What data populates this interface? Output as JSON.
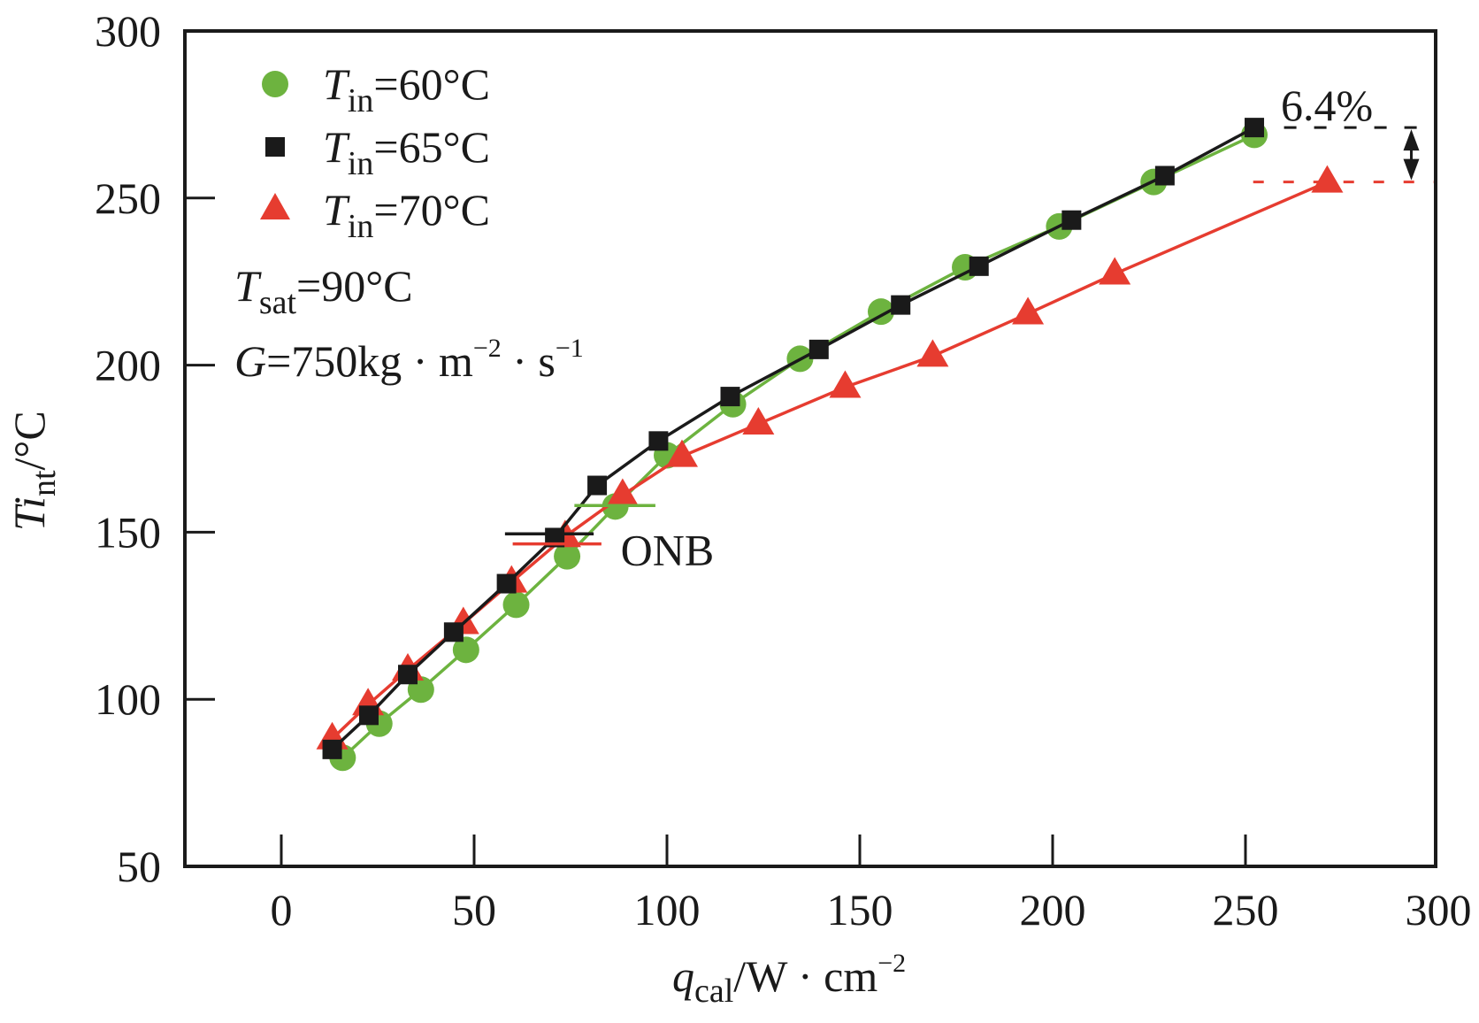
{
  "chart_data": {
    "type": "line",
    "title": "",
    "xlabel": {
      "var": "q",
      "sub": "cal",
      "unit": "/W · cm",
      "sup": "−2"
    },
    "ylabel": {
      "var": "Ti",
      "sub": "nt",
      "unit": "/°C"
    },
    "xlim": [
      -25,
      300
    ],
    "ylim": [
      50,
      300
    ],
    "x_ticks": [
      0,
      50,
      100,
      150,
      200,
      250,
      300
    ],
    "y_ticks": [
      50,
      100,
      150,
      200,
      250,
      300
    ],
    "grid": false,
    "legend_position": "top-left",
    "series": [
      {
        "name": "Tin=60°C",
        "label_var": "T",
        "label_sub": "in",
        "label_rest": "=60°C",
        "marker": "circle",
        "color": "#6db33f",
        "x": [
          15.9,
          25.4,
          36.2,
          47.9,
          60.9,
          74.1,
          86.6,
          100,
          117.1,
          134.5,
          155.5,
          177.3,
          201.7,
          226.2,
          252.3
        ],
        "y": [
          82.5,
          92.7,
          102.9,
          114.8,
          128.3,
          142.8,
          157.7,
          173,
          188.3,
          201.9,
          216,
          229.3,
          241.5,
          254.8,
          268.9
        ]
      },
      {
        "name": "Tin=65°C",
        "label_var": "T",
        "label_sub": "in",
        "label_rest": "=65°C",
        "marker": "square",
        "color": "#1a1a1a",
        "x": [
          13.2,
          22.7,
          32.8,
          44.7,
          58.4,
          70.9,
          81.9,
          97.8,
          116.4,
          139.4,
          160.6,
          180.9,
          204.9,
          229.1,
          252.3
        ],
        "y": [
          85,
          95.2,
          107.4,
          120.1,
          134.6,
          148.4,
          164,
          177.3,
          190.6,
          204.7,
          218,
          229.6,
          243.4,
          256.7,
          271.1
        ]
      },
      {
        "name": "Tin=70°C",
        "label_var": "T",
        "label_sub": "in",
        "label_rest": "=70°C",
        "marker": "triangle",
        "color": "#e63c30",
        "x": [
          13.2,
          22.5,
          32.8,
          47.2,
          59.7,
          73.6,
          88.5,
          103.9,
          123.7,
          146.2,
          168.9,
          193.6,
          216.1,
          271.2
        ],
        "y": [
          88.2,
          98.4,
          108.8,
          122.7,
          135.1,
          148.7,
          161.1,
          172.7,
          182.4,
          193.4,
          202.7,
          215.4,
          227.3,
          254.8
        ]
      }
    ],
    "conditions": [
      {
        "var": "T",
        "sub": "sat",
        "rest": "=90°C"
      },
      {
        "var": "G",
        "rest": "=750kg · m",
        "sup1": "−2",
        "rest2": " · s",
        "sup2": "−1"
      }
    ],
    "onb_markers": [
      {
        "series": "Tin=60°C",
        "x": [
          76,
          97
        ],
        "y": 158
      },
      {
        "series": "Tin=65°C",
        "x": [
          58,
          81
        ],
        "y": 149.5
      },
      {
        "series": "Tin=70°C",
        "x": [
          60,
          83
        ],
        "y": 146.5
      }
    ],
    "annotations": {
      "onb_label": "ONB",
      "onb_label_pos": {
        "x": 88,
        "y": 145
      },
      "difference_label": "6.4%",
      "difference_upper_y": 271.1,
      "difference_lower_y": 254.8,
      "difference_arrow_x": 293
    }
  }
}
